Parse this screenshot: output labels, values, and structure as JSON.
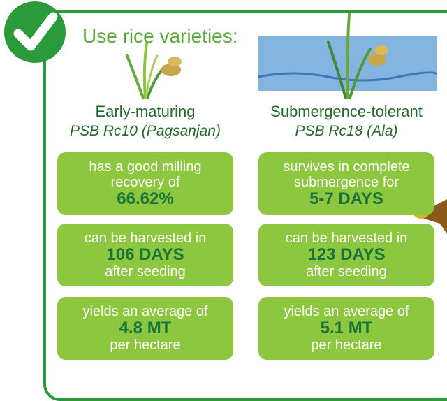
{
  "header": {
    "title": "Use rice varieties:"
  },
  "varieties": [
    {
      "type": "Early-maturing",
      "name": "PSB Rc10 (Pagsanjan)",
      "facts": [
        {
          "before": [
            "has a good milling",
            "recovery of"
          ],
          "highlight": "66.62%"
        },
        {
          "before": [
            "can be harvested in"
          ],
          "highlight": "106 DAYS",
          "after": [
            "after seeding"
          ]
        },
        {
          "before": [
            "yields an average of"
          ],
          "highlight": "4.8 MT",
          "after": [
            "per hectare"
          ]
        }
      ]
    },
    {
      "type": "Submergence-tolerant",
      "name": "PSB Rc18 (Ala)",
      "facts": [
        {
          "before": [
            "survives in complete",
            "submergence for"
          ],
          "highlight": "5-7 DAYS"
        },
        {
          "before": [
            "can be harvested in"
          ],
          "highlight": "123 DAYS",
          "after": [
            "after seeding"
          ]
        },
        {
          "before": [
            "yields an average of"
          ],
          "highlight": "5.1 MT",
          "after": [
            "per hectare"
          ]
        }
      ]
    }
  ]
}
